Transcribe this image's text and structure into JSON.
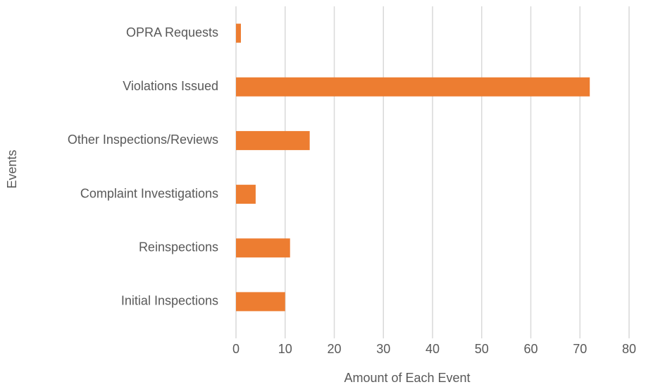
{
  "chart_data": {
    "type": "hbar",
    "xlabel": "Amount of Each Event",
    "ylabel": "Events",
    "categories": [
      "OPRA Requests",
      "Violations Issued",
      "Other Inspections/Reviews",
      "Complaint Investigations",
      "Reinspections",
      "Initial Inspections"
    ],
    "values": [
      1,
      72,
      15,
      4,
      11,
      10
    ],
    "color": "#ed7d31",
    "xlim": [
      0,
      80
    ],
    "xticks": [
      0,
      10,
      20,
      30,
      40,
      50,
      60,
      70,
      80
    ],
    "grid": true
  }
}
